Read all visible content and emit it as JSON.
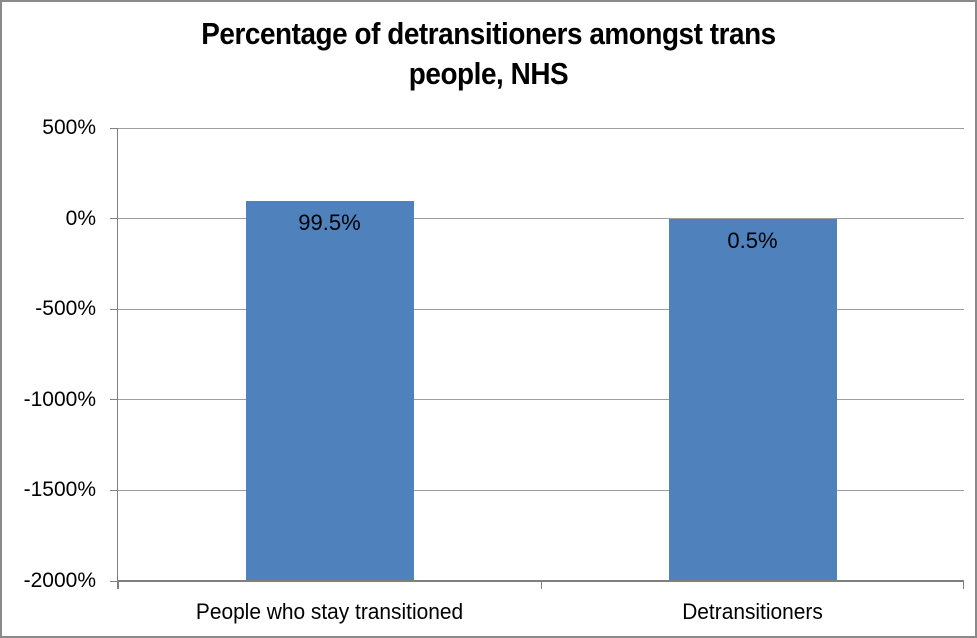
{
  "chart_data": {
    "type": "bar",
    "title": "Percentage of detransitioners amongst trans people, NHS",
    "title_lines": [
      "Percentage of detransitioners amongst trans",
      "people, NHS"
    ],
    "categories": [
      "People who stay transitioned",
      "Detransitioners"
    ],
    "values": [
      99.5,
      0.5
    ],
    "value_labels": [
      "99.5%",
      "0.5%"
    ],
    "xlabel": "",
    "ylabel": "",
    "ylim": [
      -2000,
      500
    ],
    "ytick_step": 500,
    "ytick_labels": [
      "500%",
      "0%",
      "-500%",
      "-1000%",
      "-1500%",
      "-2000%"
    ],
    "grid": true,
    "legend_position": "none",
    "bars_drawn_from": "axis-minimum",
    "value_label_position": "inside-end",
    "bar_color": "#4F81BD"
  },
  "colors": {
    "background": "#FFFFFF",
    "gridline": "#9D9D9D",
    "axis_line": "#7F7F7F",
    "outer_border": "#8A8A8A",
    "text": "#000000"
  }
}
